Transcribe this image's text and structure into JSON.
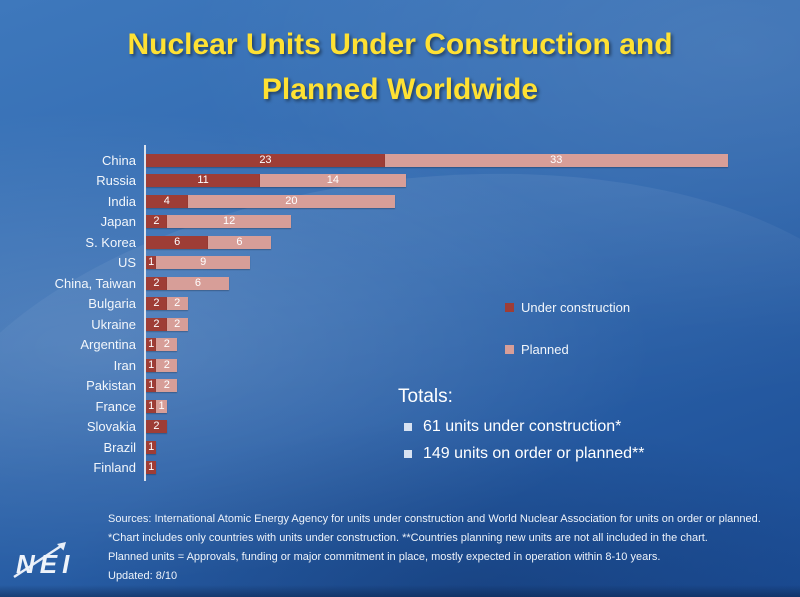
{
  "slide": {
    "title_lines": [
      "Nuclear Units Under Construction and",
      "Planned Worldwide"
    ]
  },
  "colors": {
    "title": "#ffe133",
    "under_construction": "#9e3d36",
    "planned": "#d79e98",
    "axis": "#dce3ee",
    "background_top": "#3e78bc",
    "background_bottom": "#1b4c94"
  },
  "chart_data": {
    "type": "bar",
    "orientation": "horizontal",
    "stacked": true,
    "categories": [
      "China",
      "Russia",
      "India",
      "Japan",
      "S. Korea",
      "US",
      "China, Taiwan",
      "Bulgaria",
      "Ukraine",
      "Argentina",
      "Iran",
      "Pakistan",
      "France",
      "Slovakia",
      "Brazil",
      "Finland"
    ],
    "series": [
      {
        "name": "Under construction",
        "color": "#9e3d36",
        "values": [
          23,
          11,
          4,
          2,
          6,
          1,
          2,
          2,
          2,
          1,
          1,
          1,
          1,
          2,
          1,
          1
        ]
      },
      {
        "name": "Planned",
        "color": "#d79e98",
        "values": [
          33,
          14,
          20,
          12,
          6,
          9,
          6,
          2,
          2,
          2,
          2,
          2,
          1,
          0,
          0,
          0
        ]
      }
    ],
    "xlim": [
      0,
      57
    ],
    "value_labels": true,
    "legend_position": "right",
    "grid": false
  },
  "totals": {
    "heading": "Totals:",
    "items": [
      "61 units under construction*",
      "149 units on order or planned**"
    ]
  },
  "footer": {
    "lines": [
      "Sources: International Atomic Energy Agency for units under construction and World Nuclear Association for units on order or planned.",
      "*Chart includes only countries with units under construction. **Countries planning new units are not all included in the chart.",
      "Planned units = Approvals, funding or major commitment in place, mostly expected in operation within 8-10 years.",
      "Updated: 8/10"
    ]
  },
  "logo": {
    "text": "NEI"
  }
}
